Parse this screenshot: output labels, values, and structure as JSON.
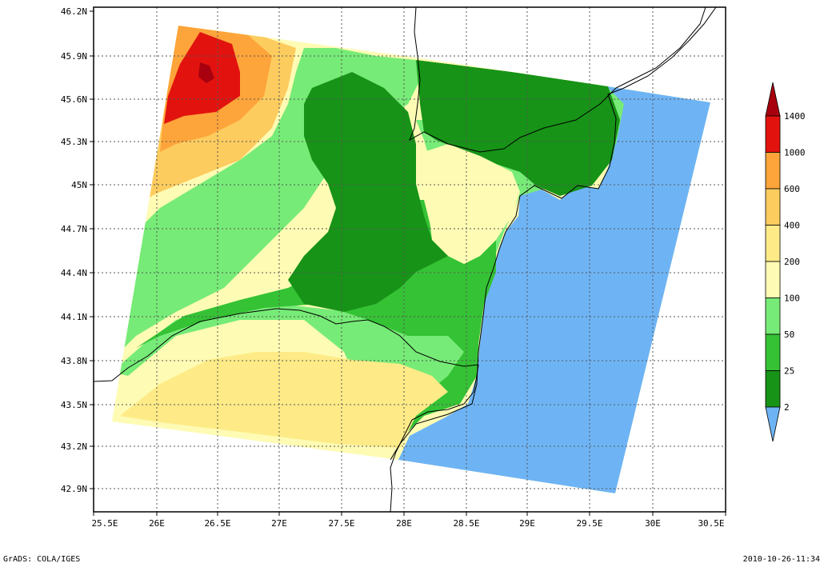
{
  "map": {
    "lat_labels": [
      "46.2N",
      "45.9N",
      "45.6N",
      "45.3N",
      "45N",
      "44.7N",
      "44.4N",
      "44.1N",
      "43.8N",
      "43.5N",
      "43.2N",
      "42.9N"
    ],
    "lon_labels": [
      "25.5E",
      "26E",
      "26.5E",
      "27E",
      "27.5E",
      "28E",
      "28.5E",
      "29E",
      "29.5E",
      "30E",
      "30.5E"
    ],
    "lat_range": [
      42.75,
      46.2
    ],
    "lon_range": [
      25.5,
      30.55
    ],
    "grid": true,
    "colors": {
      "water": "#6eb4f5",
      "c2_25": "#179317",
      "c25_50": "#35c235",
      "c50_100": "#77eb77",
      "c100_200": "#fefbb4",
      "c200_400": "#feeb87",
      "c400_600": "#fdcc5f",
      "c600_1000": "#fda43a",
      "c1000_1400": "#e2130f",
      "c1400": "#a8000e"
    }
  },
  "legend": {
    "placement": "right",
    "levels": [
      "1400",
      "1000",
      "600",
      "400",
      "200",
      "100",
      "50",
      "25",
      "2"
    ],
    "colors": [
      "#a8000e",
      "#e2130f",
      "#fda43a",
      "#fdcc5f",
      "#feeb87",
      "#fefbb4",
      "#77eb77",
      "#35c235",
      "#179317",
      "#6eb4f5"
    ]
  },
  "footer": {
    "left": "GrADS: COLA/IGES",
    "right": "2010-10-26-11:34"
  }
}
